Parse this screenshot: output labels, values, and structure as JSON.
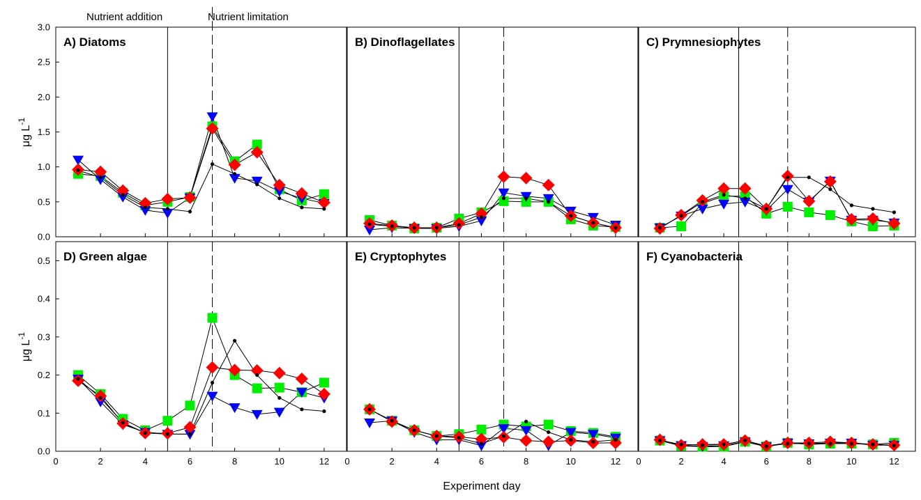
{
  "figure": {
    "xlabel": "Experiment day",
    "ylabel": "μg L",
    "ylabel_sup": "-1",
    "phase_labels": [
      "Nutrient addition",
      "Nutrient limitation"
    ],
    "marker_colors": {
      "circle": "#000000",
      "triangle": "#0000ff",
      "square": "#00ee00",
      "diamond": "#ff0000"
    }
  },
  "chart_data": [
    {
      "type": "line",
      "title": "A) Diatoms",
      "xlim": [
        0,
        13
      ],
      "ylim": [
        0,
        3.0
      ],
      "x": [
        1,
        2,
        3,
        4,
        5,
        6,
        7,
        8,
        9,
        10,
        11,
        12
      ],
      "xticks": [
        "0",
        "2",
        "4",
        "6",
        "8",
        "10",
        "12"
      ],
      "yticks": [
        "0.0",
        "0.5",
        "1.0",
        "1.5",
        "2.0",
        "2.5",
        "3.0"
      ],
      "vlines": {
        "solid": 5,
        "dashed": 7
      },
      "series": [
        {
          "marker": "circle",
          "values": [
            0.95,
            0.85,
            0.6,
            0.42,
            0.4,
            0.36,
            1.04,
            0.9,
            0.75,
            0.55,
            0.42,
            0.4
          ]
        },
        {
          "marker": "triangle",
          "values": [
            1.1,
            0.82,
            0.57,
            0.38,
            0.34,
            0.56,
            1.72,
            0.84,
            0.8,
            0.65,
            0.55,
            0.48
          ]
        },
        {
          "marker": "square",
          "values": [
            0.9,
            0.87,
            0.63,
            0.45,
            0.5,
            0.57,
            1.58,
            1.08,
            1.32,
            0.68,
            0.52,
            0.61
          ]
        },
        {
          "marker": "diamond",
          "values": [
            0.96,
            0.93,
            0.66,
            0.48,
            0.54,
            0.56,
            1.55,
            1.03,
            1.21,
            0.74,
            0.62,
            0.49
          ]
        }
      ]
    },
    {
      "type": "line",
      "title": "B) Dinoflagellates",
      "xlim": [
        0,
        13
      ],
      "ylim": [
        0,
        3.0
      ],
      "x": [
        1,
        2,
        3,
        4,
        5,
        6,
        7,
        8,
        9,
        10,
        11,
        12
      ],
      "xticks": [
        "0",
        "2",
        "4",
        "6",
        "8",
        "10",
        "12"
      ],
      "vlines": {
        "solid": 5,
        "dashed": 7
      },
      "series": [
        {
          "marker": "circle",
          "values": [
            0.18,
            0.15,
            0.13,
            0.13,
            0.17,
            0.28,
            0.55,
            0.55,
            0.5,
            0.3,
            0.2,
            0.13
          ]
        },
        {
          "marker": "triangle",
          "values": [
            0.1,
            0.13,
            0.12,
            0.12,
            0.15,
            0.23,
            0.63,
            0.58,
            0.55,
            0.37,
            0.28,
            0.17
          ]
        },
        {
          "marker": "square",
          "values": [
            0.24,
            0.16,
            0.12,
            0.13,
            0.26,
            0.35,
            0.51,
            0.5,
            0.5,
            0.25,
            0.16,
            0.14
          ]
        },
        {
          "marker": "diamond",
          "values": [
            0.19,
            0.16,
            0.13,
            0.13,
            0.19,
            0.33,
            0.86,
            0.84,
            0.74,
            0.3,
            0.2,
            0.13
          ]
        }
      ]
    },
    {
      "type": "line",
      "title": "C) Prymnesiophytes",
      "xlim": [
        0,
        13
      ],
      "ylim": [
        0,
        3.0
      ],
      "x": [
        1,
        2,
        3,
        4,
        5,
        6,
        7,
        8,
        9,
        10,
        11,
        12
      ],
      "xticks": [
        "0",
        "2",
        "4",
        "6",
        "8",
        "10",
        "12"
      ],
      "vlines": {
        "solid": 4.7,
        "dashed": 7
      },
      "series": [
        {
          "marker": "circle",
          "values": [
            0.13,
            0.3,
            0.5,
            0.6,
            0.55,
            0.4,
            0.85,
            0.85,
            0.68,
            0.45,
            0.4,
            0.35
          ]
        },
        {
          "marker": "triangle",
          "values": [
            0.13,
            0.3,
            0.4,
            0.47,
            0.5,
            0.38,
            0.68,
            0.5,
            0.8,
            0.24,
            0.24,
            0.2
          ]
        },
        {
          "marker": "square",
          "values": [
            0.13,
            0.15,
            0.48,
            0.58,
            0.58,
            0.33,
            0.43,
            0.35,
            0.31,
            0.22,
            0.15,
            0.16
          ]
        },
        {
          "marker": "diamond",
          "values": [
            0.12,
            0.31,
            0.52,
            0.69,
            0.69,
            0.4,
            0.87,
            0.51,
            0.79,
            0.25,
            0.26,
            0.19
          ]
        }
      ]
    },
    {
      "type": "line",
      "title": "D) Green algae",
      "xlim": [
        0,
        13
      ],
      "ylim": [
        0,
        0.55
      ],
      "x": [
        1,
        2,
        3,
        4,
        5,
        6,
        7,
        8,
        9,
        10,
        11,
        12
      ],
      "xticks": [
        "0",
        "2",
        "4",
        "6",
        "8",
        "10",
        "12"
      ],
      "yticks": [
        "0.0",
        "0.1",
        "0.2",
        "0.3",
        "0.4",
        "0.5"
      ],
      "vlines": {
        "solid": 5,
        "dashed": 7
      },
      "series": [
        {
          "marker": "circle",
          "values": [
            0.19,
            0.14,
            0.075,
            0.048,
            0.045,
            0.045,
            0.18,
            0.29,
            0.2,
            0.14,
            0.11,
            0.105
          ]
        },
        {
          "marker": "triangle",
          "values": [
            0.19,
            0.13,
            0.07,
            0.05,
            0.045,
            0.045,
            0.145,
            0.115,
            0.097,
            0.103,
            0.155,
            0.14
          ]
        },
        {
          "marker": "square",
          "values": [
            0.2,
            0.15,
            0.085,
            0.055,
            0.08,
            0.12,
            0.35,
            0.2,
            0.165,
            0.167,
            0.155,
            0.18
          ]
        },
        {
          "marker": "diamond",
          "values": [
            0.185,
            0.145,
            0.073,
            0.048,
            0.047,
            0.063,
            0.22,
            0.213,
            0.212,
            0.205,
            0.19,
            0.15
          ]
        }
      ]
    },
    {
      "type": "line",
      "title": "E) Cryptophytes",
      "xlim": [
        0,
        13
      ],
      "ylim": [
        0,
        0.55
      ],
      "x": [
        1,
        2,
        3,
        4,
        5,
        6,
        7,
        8,
        9,
        10,
        11,
        12
      ],
      "xticks": [
        "0",
        "2",
        "4",
        "6",
        "8",
        "10",
        "12"
      ],
      "vlines": {
        "solid": 5,
        "dashed": 7
      },
      "series": [
        {
          "marker": "circle",
          "values": [
            0.11,
            0.08,
            0.055,
            0.04,
            0.035,
            0.02,
            0.04,
            0.078,
            0.05,
            0.03,
            0.025,
            0.03
          ]
        },
        {
          "marker": "triangle",
          "values": [
            0.075,
            0.08,
            0.05,
            0.03,
            0.03,
            0.015,
            0.06,
            0.055,
            0.015,
            0.05,
            0.045,
            0.035
          ]
        },
        {
          "marker": "square",
          "values": [
            0.11,
            0.08,
            0.055,
            0.04,
            0.045,
            0.057,
            0.07,
            0.065,
            0.07,
            0.053,
            0.048,
            0.038
          ]
        },
        {
          "marker": "diamond",
          "values": [
            0.11,
            0.078,
            0.055,
            0.04,
            0.038,
            0.032,
            0.037,
            0.028,
            0.025,
            0.028,
            0.022,
            0.022
          ]
        }
      ]
    },
    {
      "type": "line",
      "title": "F) Cyanobacteria",
      "xlim": [
        0,
        13
      ],
      "ylim": [
        0,
        0.55
      ],
      "x": [
        1,
        2,
        3,
        4,
        5,
        6,
        7,
        8,
        9,
        10,
        11,
        12
      ],
      "xticks": [
        "0",
        "2",
        "4",
        "6",
        "8",
        "10",
        "12"
      ],
      "vlines": {
        "solid": 4.7,
        "dashed": 7
      },
      "series": [
        {
          "marker": "circle",
          "values": [
            0.028,
            0.018,
            0.016,
            0.018,
            0.028,
            0.013,
            0.02,
            0.02,
            0.02,
            0.02,
            0.018,
            0.015
          ]
        },
        {
          "marker": "triangle",
          "values": [
            0.028,
            0.015,
            0.013,
            0.015,
            0.025,
            0.012,
            0.022,
            0.02,
            0.022,
            0.022,
            0.016,
            0.016
          ]
        },
        {
          "marker": "square",
          "values": [
            0.028,
            0.014,
            0.012,
            0.012,
            0.025,
            0.013,
            0.022,
            0.018,
            0.02,
            0.02,
            0.018,
            0.022
          ]
        },
        {
          "marker": "diamond",
          "values": [
            0.03,
            0.016,
            0.018,
            0.018,
            0.028,
            0.014,
            0.022,
            0.022,
            0.025,
            0.022,
            0.018,
            0.016
          ]
        }
      ]
    }
  ]
}
